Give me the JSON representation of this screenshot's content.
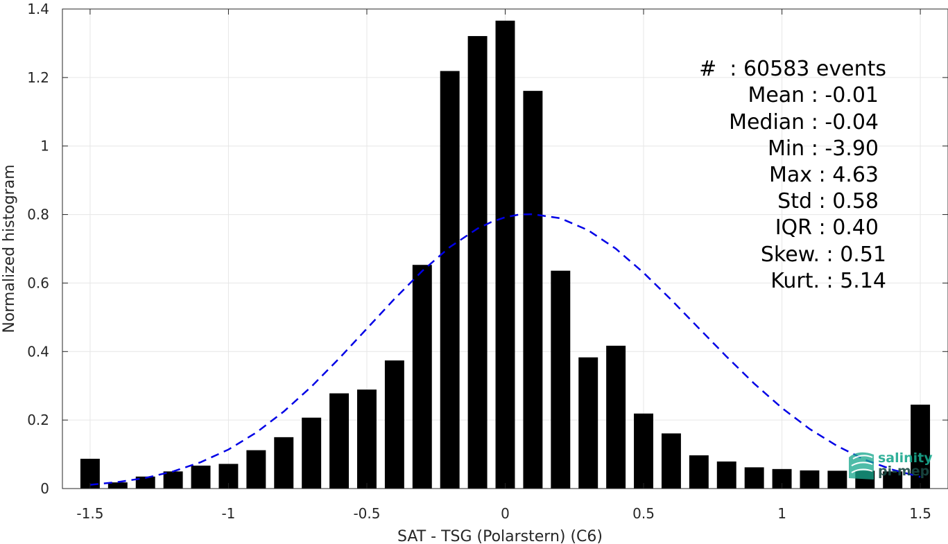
{
  "chart_data": {
    "type": "bar",
    "xlabel": "SAT - TSG (Polarstern) (C6)",
    "ylabel": "Normalized histogram",
    "xlim": [
      -1.6,
      1.6
    ],
    "ylim": [
      0,
      1.4
    ],
    "grid": true,
    "x_ticks": [
      -1.5,
      -1,
      -0.5,
      0,
      0.5,
      1,
      1.5
    ],
    "x_tick_labels": [
      "-1.5",
      "-1",
      "-0.5",
      "0",
      "0.5",
      "1",
      "1.5"
    ],
    "y_ticks": [
      0,
      0.2,
      0.4,
      0.6,
      0.8,
      1,
      1.2,
      1.4
    ],
    "y_tick_labels": [
      "0",
      "0.2",
      "0.4",
      "0.6",
      "0.8",
      "1",
      "1.2",
      "1.4"
    ],
    "bin_width": 0.1,
    "x": [
      -1.5,
      -1.4,
      -1.3,
      -1.2,
      -1.1,
      -1.0,
      -0.9,
      -0.8,
      -0.7,
      -0.6,
      -0.5,
      -0.4,
      -0.3,
      -0.2,
      -0.1,
      0.0,
      0.1,
      0.2,
      0.3,
      0.4,
      0.5,
      0.6,
      0.7,
      0.8,
      0.9,
      1.0,
      1.1,
      1.2,
      1.3,
      1.4,
      1.5
    ],
    "values": [
      0.087,
      0.018,
      0.035,
      0.05,
      0.067,
      0.072,
      0.112,
      0.15,
      0.207,
      0.278,
      0.289,
      0.374,
      0.653,
      1.219,
      1.321,
      1.366,
      1.161,
      0.636,
      0.383,
      0.417,
      0.219,
      0.161,
      0.097,
      0.079,
      0.062,
      0.057,
      0.053,
      0.052,
      0.052,
      0.05,
      0.245
    ],
    "bar_color": "#000000",
    "fit_curve": {
      "style": "dashed",
      "color": "#0000e6",
      "x": [
        -1.5,
        -1.4,
        -1.3,
        -1.2,
        -1.1,
        -1.0,
        -0.9,
        -0.8,
        -0.7,
        -0.6,
        -0.5,
        -0.4,
        -0.3,
        -0.2,
        -0.1,
        -0.05,
        0.0,
        0.05,
        0.1,
        0.2,
        0.3,
        0.4,
        0.5,
        0.6,
        0.7,
        0.8,
        0.9,
        1.0,
        1.1,
        1.2,
        1.3,
        1.4,
        1.5
      ],
      "y": [
        0.011,
        0.019,
        0.031,
        0.05,
        0.077,
        0.114,
        0.163,
        0.225,
        0.298,
        0.38,
        0.467,
        0.554,
        0.635,
        0.705,
        0.759,
        0.778,
        0.792,
        0.8,
        0.801,
        0.789,
        0.754,
        0.7,
        0.63,
        0.551,
        0.468,
        0.385,
        0.306,
        0.235,
        0.174,
        0.124,
        0.084,
        0.055,
        0.034
      ]
    }
  },
  "stats": {
    "lines": [
      "#  : 60583 events",
      "Mean : -0.01",
      "Median : -0.04",
      "Min : -3.90",
      "Max : 4.63",
      "Std : 0.58",
      "IQR : 0.40",
      "Skew. : 0.51",
      "Kurt. : 5.14"
    ]
  },
  "logo": {
    "line1": "salinity",
    "line2": "pi-mep",
    "color1": "#1aa88e",
    "color2": "#1a4a44"
  },
  "colors": {
    "grid": "#e6e6e6",
    "axis": "#262626",
    "logo_icon": "#1aa88e"
  }
}
